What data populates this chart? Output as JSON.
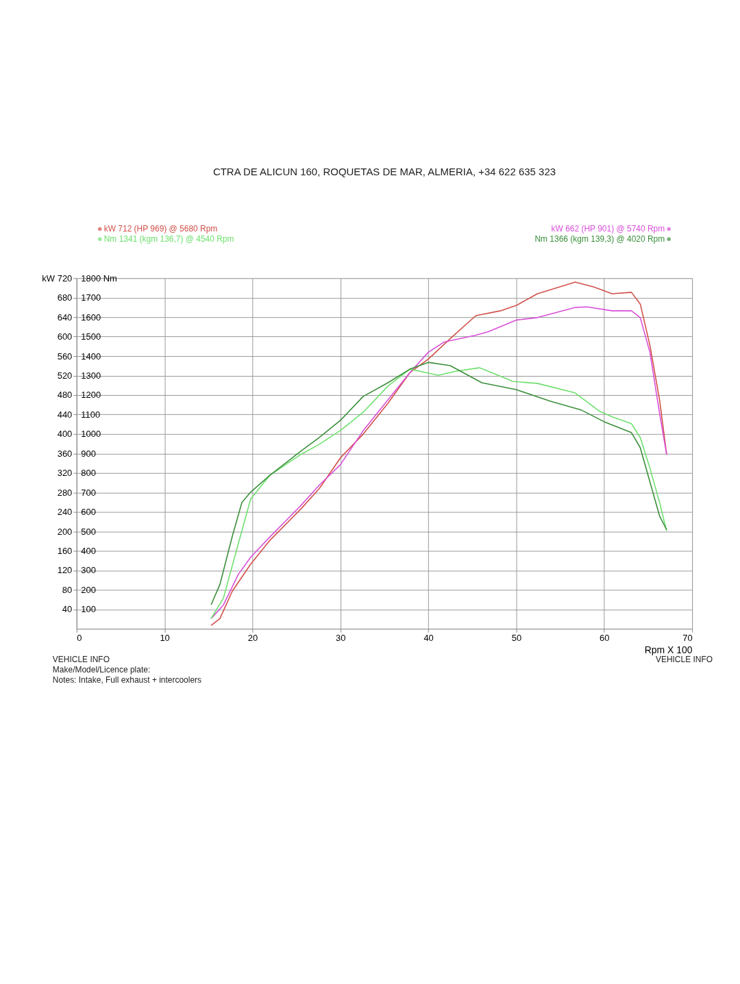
{
  "chart_data": {
    "type": "line",
    "subtitle": "CTRA DE ALICUN 160, ROQUETAS DE MAR, ALMERIA, +34 622 635 323",
    "xlabel": "Rpm X 100",
    "xlim": [
      0,
      70
    ],
    "xticks": [
      0,
      10,
      20,
      30,
      40,
      50,
      60,
      70
    ],
    "ylim": [
      0,
      720
    ],
    "yticks": [
      40,
      80,
      120,
      160,
      200,
      240,
      280,
      320,
      360,
      400,
      440,
      480,
      520,
      560,
      600,
      640,
      680,
      {
        "value": 720,
        "label": "kW 720"
      }
    ],
    "y2lim": [
      0,
      1800
    ],
    "y2ticks": [
      100,
      200,
      300,
      400,
      500,
      600,
      700,
      800,
      900,
      1000,
      1100,
      1200,
      1300,
      1400,
      1500,
      1600,
      1700,
      {
        "value": 1800,
        "label": "1800 Nm"
      }
    ],
    "grid": true,
    "legend": "top",
    "marker": "none",
    "line_style": "solid",
    "series": [
      {
        "name": "kW 712 (HP 969) @ 5680 Rpm",
        "color": "#d2504a",
        "x": [
          15.3,
          16.3,
          17.7,
          19.8,
          22.0,
          25.5,
          27.6,
          30.0,
          32.6,
          35.4,
          37.9,
          40.0,
          42.5,
          45.4,
          48.2,
          50.0,
          52.4,
          56.7,
          58.8,
          60.9,
          63.1,
          64.1,
          65.2,
          66.3,
          67.1
        ],
        "values": [
          7,
          21,
          77,
          133,
          182,
          246,
          288,
          351,
          400,
          463,
          526,
          554,
          596,
          643,
          653,
          664,
          688,
          712,
          702,
          688,
          691,
          667,
          582,
          470,
          358
        ]
      },
      {
        "name": "Nm 1341 (kgm 136,7) @ 4540 Rpm",
        "axis": "y2",
        "color": "#6ee06e",
        "x": [
          15.3,
          16.7,
          18.4,
          19.8,
          22.0,
          25.5,
          27.6,
          30.0,
          32.6,
          35.4,
          37.9,
          39.7,
          41.1,
          43.2,
          45.8,
          46.8,
          49.6,
          52.4,
          56.7,
          59.5,
          60.9,
          63.1,
          64.1,
          65.2,
          66.3,
          67.1
        ],
        "values": [
          53,
          158,
          439,
          667,
          789,
          895,
          947,
          1018,
          1112,
          1246,
          1333,
          1316,
          1302,
          1323,
          1340,
          1323,
          1270,
          1260,
          1211,
          1116,
          1088,
          1053,
          982,
          825,
          649,
          502
        ]
      },
      {
        "name": "kW 662 (HP 901) @ 5740 Rpm",
        "color": "#d94fd9",
        "x": [
          15.3,
          16.7,
          18.4,
          19.8,
          22.0,
          25.5,
          27.6,
          30.0,
          32.6,
          35.4,
          37.9,
          40.0,
          41.8,
          45.4,
          46.8,
          50.0,
          52.4,
          56.7,
          58.1,
          60.9,
          63.1,
          64.1,
          65.2,
          66.3,
          67.1
        ],
        "values": [
          21,
          49,
          112,
          147,
          189,
          253,
          295,
          337,
          407,
          470,
          526,
          568,
          589,
          603,
          610,
          634,
          639,
          660,
          661,
          653,
          653,
          639,
          568,
          442,
          358
        ]
      },
      {
        "name": "Nm 1366 (kgm 139,3) @ 4020 Rpm",
        "axis": "y2",
        "color": "#3a8f3a",
        "x": [
          15.3,
          16.3,
          17.7,
          18.8,
          19.8,
          22.0,
          25.5,
          27.6,
          30.0,
          32.6,
          35.4,
          37.9,
          40.0,
          42.5,
          46.1,
          50.0,
          53.9,
          57.4,
          60.0,
          63.1,
          64.1,
          65.2,
          66.3,
          67.1
        ],
        "values": [
          123,
          228,
          474,
          649,
          702,
          789,
          912,
          982,
          1070,
          1193,
          1263,
          1333,
          1368,
          1351,
          1263,
          1228,
          1168,
          1123,
          1063,
          1007,
          930,
          754,
          579,
          509
        ]
      }
    ],
    "annotations": [
      "VEHICLE INFO",
      "Make/Model/Licence plate:",
      "Notes: Intake, Full exhaust + intercoolers",
      "VEHICLE INFO"
    ]
  }
}
